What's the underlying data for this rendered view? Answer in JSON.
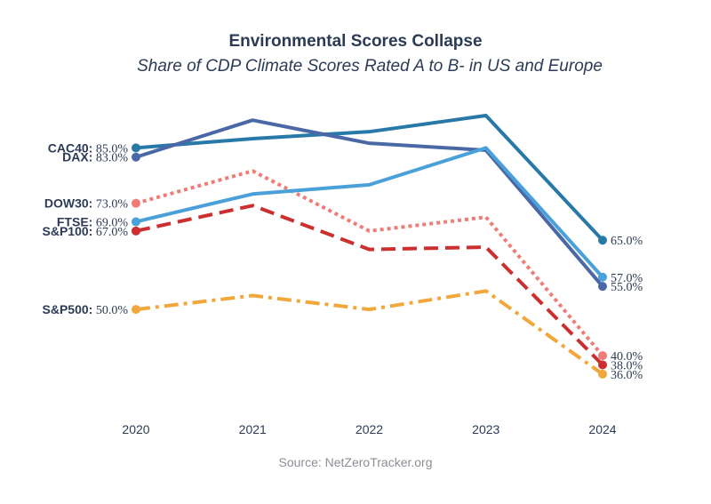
{
  "chart_data": {
    "type": "line",
    "title": "Environmental Scores Collapse",
    "subtitle": "Share of CDP Climate Scores Rated A to B- in US and Europe",
    "source": "Source: NetZeroTracker.org",
    "x": [
      "2020",
      "2021",
      "2022",
      "2023",
      "2024"
    ],
    "ylim": [
      30,
      92
    ],
    "grid": false,
    "legend": "none",
    "series": [
      {
        "name": "CAC40",
        "values": [
          85.0,
          87.0,
          88.5,
          92.0,
          65.0
        ],
        "color": "#2878a8",
        "dash": "solid",
        "start_label": "85.0%",
        "end_label": "65.0%"
      },
      {
        "name": "DAX",
        "values": [
          83.0,
          91.0,
          86.0,
          84.5,
          55.0
        ],
        "color": "#4a68a6",
        "dash": "solid",
        "start_label": "83.0%",
        "end_label": "55.0%"
      },
      {
        "name": "DOW30",
        "values": [
          73.0,
          80.0,
          67.0,
          70.0,
          40.0
        ],
        "color": "#ef7d75",
        "dash": "dotted",
        "start_label": "73.0%",
        "end_label": "40.0%"
      },
      {
        "name": "FTSE",
        "values": [
          69.0,
          75.0,
          77.0,
          85.0,
          57.0
        ],
        "color": "#4aa0d8",
        "dash": "solid",
        "start_label": "69.0%",
        "end_label": "57.0%"
      },
      {
        "name": "S&P100",
        "values": [
          67.0,
          72.5,
          63.0,
          63.5,
          38.0
        ],
        "color": "#cc2f2f",
        "dash": "dashed",
        "start_label": "67.0%",
        "end_label": "38.0%"
      },
      {
        "name": "S&P500",
        "values": [
          50.0,
          53.0,
          50.0,
          54.0,
          36.0
        ],
        "color": "#f1a73a",
        "dash": "dashdot",
        "start_label": "50.0%",
        "end_label": "36.0%"
      }
    ]
  }
}
